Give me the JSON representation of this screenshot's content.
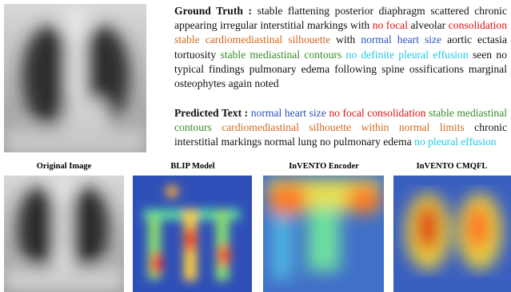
{
  "ground_truth": {
    "label": "Ground Truth :",
    "segments": [
      {
        "text": "stable flattening posterior diaphragm scattered chronic appearing irregular interstitial markings with",
        "color": "#111111"
      },
      {
        "text": "no focal",
        "color": "#e01010"
      },
      {
        "text": "alveolar",
        "color": "#111111"
      },
      {
        "text": "consolidation",
        "color": "#e01010"
      },
      {
        "text": "stable cardiomediastinal silhouette",
        "color": "#d2691e"
      },
      {
        "text": "with",
        "color": "#111111"
      },
      {
        "text": "normal heart size",
        "color": "#2a52be"
      },
      {
        "text": "aortic ectasia tortuosity",
        "color": "#111111"
      },
      {
        "text": "stable mediastinal contours",
        "color": "#3a8a2a"
      },
      {
        "text": "no definite",
        "color": "#1ec8e6"
      },
      {
        "text": "pleural effusion",
        "color": "#1ec8e6"
      },
      {
        "text": "seen no typical findings pulmonary edema following spine ossifications marginal osteophytes again noted",
        "color": "#111111"
      }
    ]
  },
  "predicted_text": {
    "label": "Predicted Text :",
    "segments": [
      {
        "text": "normal heart size",
        "color": "#2a52be"
      },
      {
        "text": "no focal consolidation",
        "color": "#e01010"
      },
      {
        "text": "stable mediastinal contours",
        "color": "#3a8a2a"
      },
      {
        "text": "cardiomediastinal silhouette within normal limits",
        "color": "#d2691e"
      },
      {
        "text": "chronic interstitial markings normal lung no pulmonary edema",
        "color": "#111111"
      },
      {
        "text": "no pleural effusion",
        "color": "#1ec8e6"
      }
    ]
  },
  "panels": [
    {
      "caption": "Original Image"
    },
    {
      "caption": "BLIP Model"
    },
    {
      "caption": "InVENTO Encoder"
    },
    {
      "caption": "InVENTO CMQFL"
    }
  ]
}
